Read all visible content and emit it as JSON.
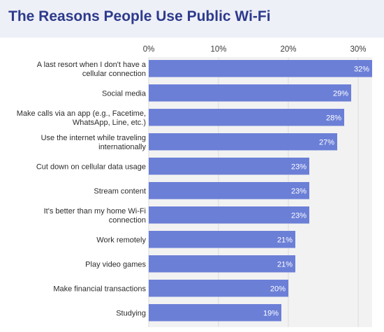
{
  "header": {
    "title": "The Reasons People Use Public Wi-Fi"
  },
  "colors": {
    "bar": "#6b7fd7",
    "track": "#f2f2f2",
    "header_bg": "#eef0f7",
    "title": "#2d3a8c"
  },
  "chart_data": {
    "type": "bar",
    "orientation": "horizontal",
    "title": "The Reasons People Use Public Wi-Fi",
    "xlim": [
      0,
      32
    ],
    "ticks": [
      "0%",
      "10%",
      "20%",
      "30%"
    ],
    "tick_values": [
      0,
      10,
      20,
      30
    ],
    "grid": true,
    "categories": [
      "A last resort when I don't have a cellular connection",
      "Social media",
      "Make calls via an app (e.g., Facetime, WhatsApp, Line, etc.)",
      "Use the internet while traveling internationally",
      "Cut down on cellular data usage",
      "Stream content",
      "It's better than my home Wi-Fi connection",
      "Work remotely",
      "Play video games",
      "Make financial transactions",
      "Studying"
    ],
    "category_lines": [
      [
        "A last resort when I don't have a",
        "cellular connection"
      ],
      [
        "Social media"
      ],
      [
        "Make calls via an app (e.g., Facetime,",
        "WhatsApp, Line, etc.)"
      ],
      [
        "Use the internet while traveling",
        "internationally"
      ],
      [
        "Cut down on cellular data usage"
      ],
      [
        "Stream content"
      ],
      [
        "It's better than my home Wi-Fi",
        "connection"
      ],
      [
        "Work remotely"
      ],
      [
        "Play video games"
      ],
      [
        "Make financial transactions"
      ],
      [
        "Studying"
      ]
    ],
    "values": [
      32,
      29,
      28,
      27,
      23,
      23,
      23,
      21,
      21,
      20,
      19
    ],
    "value_labels": [
      "32%",
      "29%",
      "28%",
      "27%",
      "23%",
      "23%",
      "23%",
      "21%",
      "21%",
      "20%",
      "19%"
    ]
  }
}
